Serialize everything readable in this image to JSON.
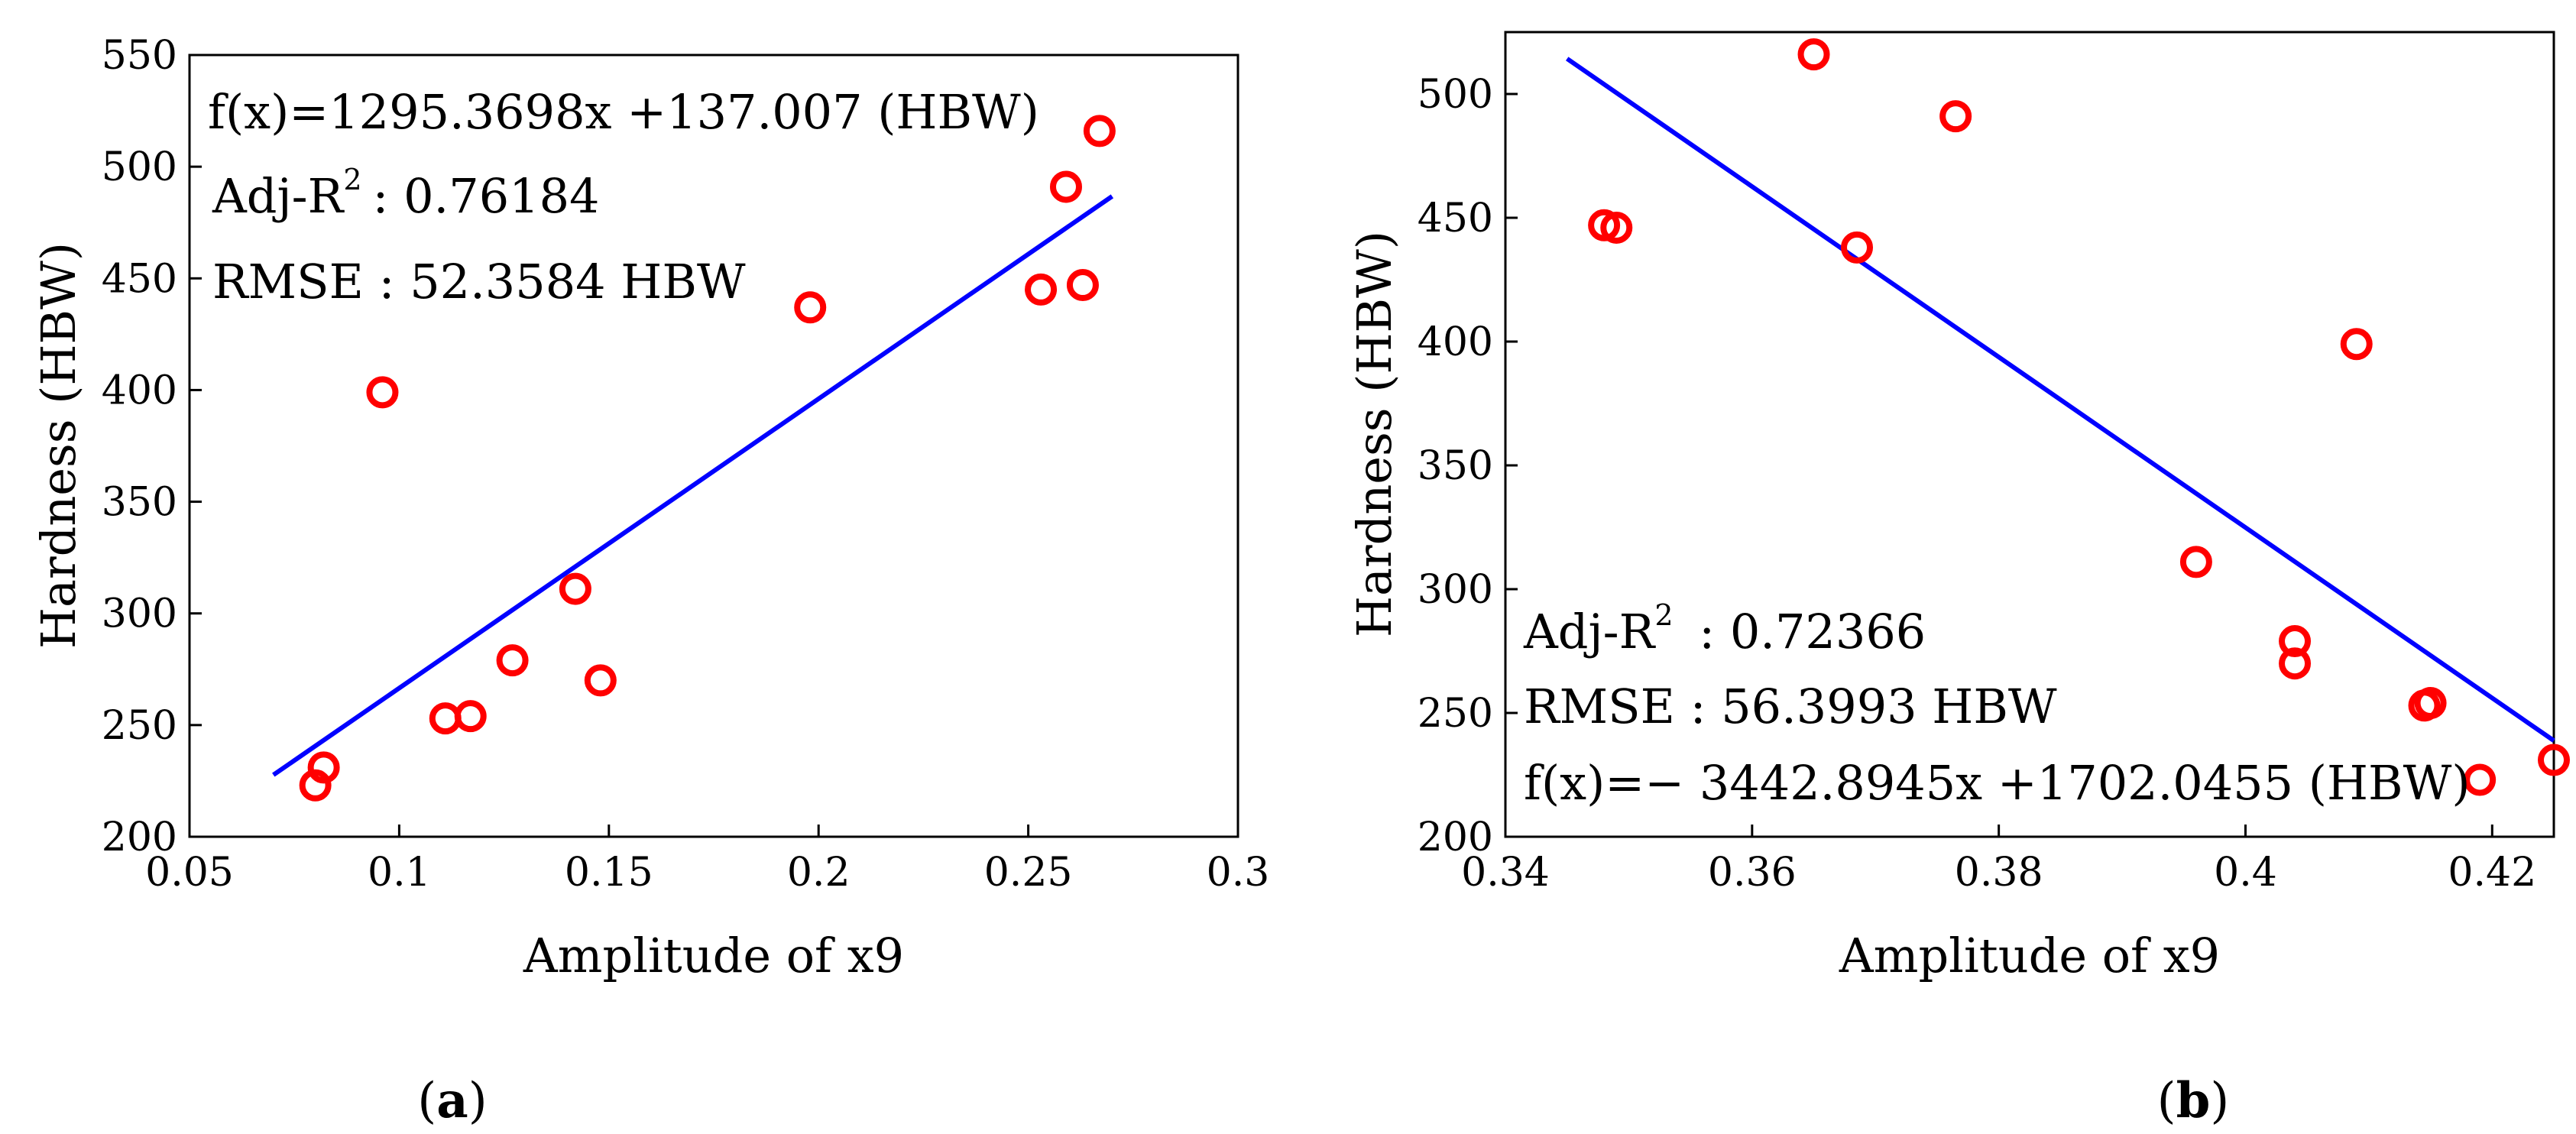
{
  "panels": [
    {
      "label": "(a)",
      "label_letter": "a",
      "annotations": [
        {
          "text": "f(x)=1295.3698x +137.007 (HBW)"
        },
        {
          "text": "Adj-R",
          "sup": "2",
          "rest": ": 0.76184"
        },
        {
          "text": "RMSE  : 52.3584 HBW"
        }
      ],
      "chart_data": {
        "type": "scatter",
        "xlabel": "Amplitude of x9",
        "ylabel": "Hardness (HBW)",
        "xlim": [
          0.05,
          0.3
        ],
        "ylim": [
          200,
          550
        ],
        "xticks": [
          0.05,
          0.1,
          0.15,
          0.2,
          0.25,
          0.3
        ],
        "xtick_labels": [
          "0.05",
          "0.1",
          "0.15",
          "0.2",
          "0.25",
          "0.3"
        ],
        "yticks": [
          200,
          250,
          300,
          350,
          400,
          450,
          500,
          550
        ],
        "ytick_labels": [
          "200",
          "250",
          "300",
          "350",
          "400",
          "450",
          "500",
          "550"
        ],
        "grid": false,
        "points": [
          {
            "x": 0.08,
            "y": 223
          },
          {
            "x": 0.082,
            "y": 231
          },
          {
            "x": 0.096,
            "y": 399
          },
          {
            "x": 0.111,
            "y": 253
          },
          {
            "x": 0.117,
            "y": 254
          },
          {
            "x": 0.127,
            "y": 279
          },
          {
            "x": 0.142,
            "y": 311
          },
          {
            "x": 0.148,
            "y": 270
          },
          {
            "x": 0.198,
            "y": 437
          },
          {
            "x": 0.253,
            "y": 445
          },
          {
            "x": 0.259,
            "y": 491
          },
          {
            "x": 0.263,
            "y": 447
          },
          {
            "x": 0.267,
            "y": 516
          }
        ],
        "fit_line": {
          "slope": 1295.3698,
          "intercept": 137.007,
          "x_range": [
            0.07,
            0.27
          ]
        },
        "marker_color": "#ff0000",
        "line_color": "#0000ff"
      }
    },
    {
      "label": "(b)",
      "label_letter": "b",
      "annotations": [
        {
          "text": "Adj-R",
          "sup": "2",
          "rest": "  : 0.72366"
        },
        {
          "text": "RMSE   : 56.3993 HBW"
        },
        {
          "text": "f(x)=− 3442.8945x +1702.0455 (HBW)"
        }
      ],
      "chart_data": {
        "type": "scatter",
        "xlabel": "Amplitude of x9",
        "ylabel": "Hardness (HBW)",
        "xlim": [
          0.34,
          0.425
        ],
        "ylim": [
          200,
          525
        ],
        "xticks": [
          0.34,
          0.36,
          0.38,
          0.4,
          0.42
        ],
        "xtick_labels": [
          "0.34",
          "0.36",
          "0.38",
          "0.4",
          "0.42"
        ],
        "yticks": [
          200,
          250,
          300,
          350,
          400,
          450,
          500
        ],
        "ytick_labels": [
          "200",
          "250",
          "300",
          "350",
          "400",
          "450",
          "500"
        ],
        "grid": false,
        "points": [
          {
            "x": 0.348,
            "y": 447
          },
          {
            "x": 0.349,
            "y": 446
          },
          {
            "x": 0.365,
            "y": 516
          },
          {
            "x": 0.3685,
            "y": 438
          },
          {
            "x": 0.3765,
            "y": 491
          },
          {
            "x": 0.396,
            "y": 311
          },
          {
            "x": 0.404,
            "y": 279
          },
          {
            "x": 0.404,
            "y": 270
          },
          {
            "x": 0.409,
            "y": 399
          },
          {
            "x": 0.4145,
            "y": 253
          },
          {
            "x": 0.415,
            "y": 254
          },
          {
            "x": 0.419,
            "y": 223
          },
          {
            "x": 0.425,
            "y": 231
          }
        ],
        "fit_line": {
          "slope": -3442.8945,
          "intercept": 1702.0455,
          "x_range": [
            0.345,
            0.425
          ]
        },
        "marker_color": "#ff0000",
        "line_color": "#0000ff"
      }
    }
  ]
}
